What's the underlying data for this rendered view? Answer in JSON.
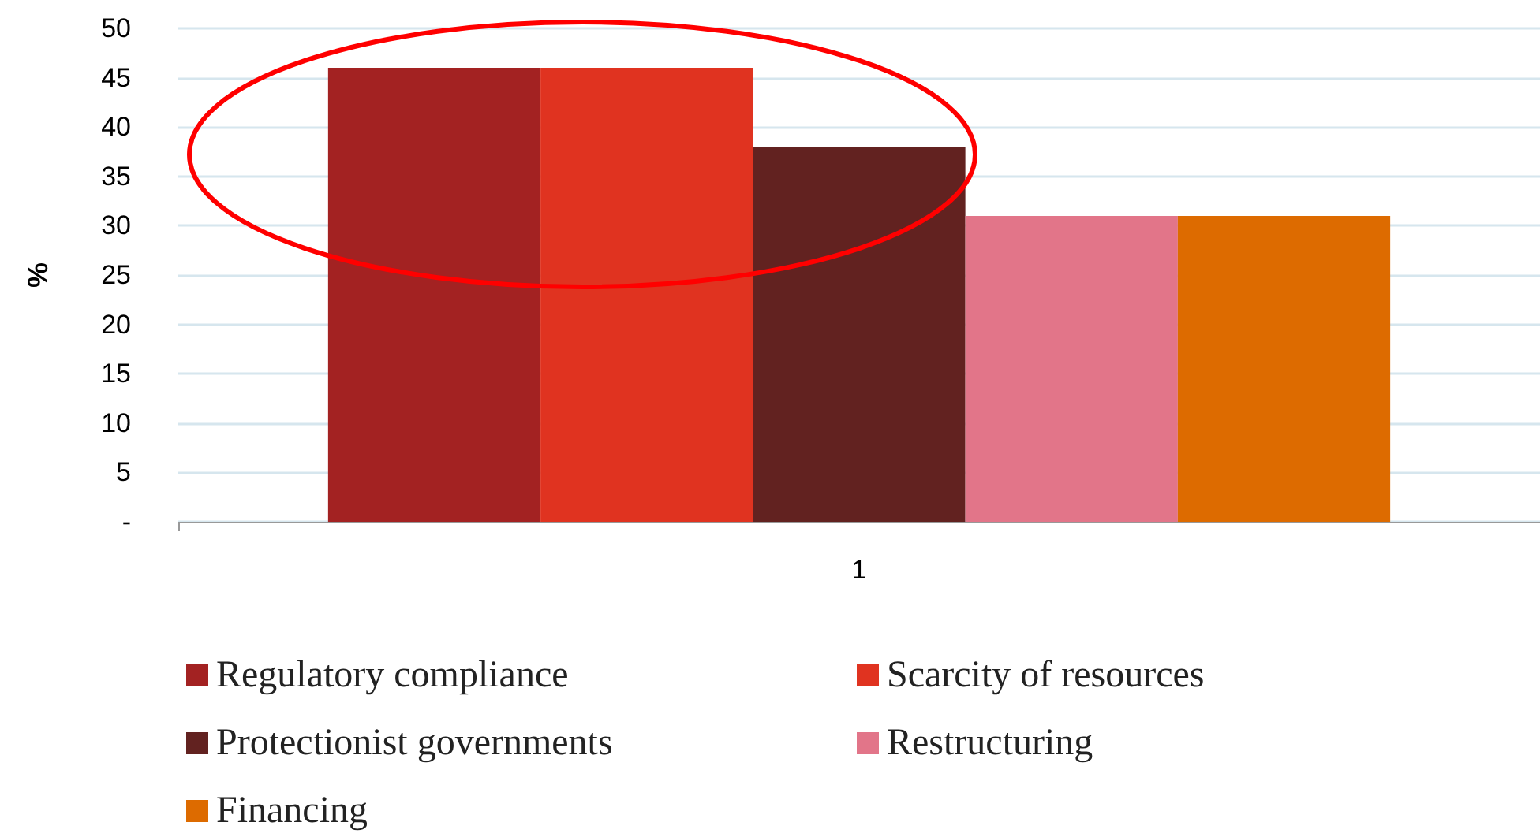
{
  "chart_data": {
    "type": "bar",
    "ylabel": "%",
    "categories": [
      "1"
    ],
    "series": [
      {
        "name": "Regulatory compliance",
        "color": "#a32222",
        "values": [
          46
        ]
      },
      {
        "name": "Scarcity of resources",
        "color": "#e03320",
        "values": [
          46
        ]
      },
      {
        "name": "Protectionist governments",
        "color": "#622220",
        "values": [
          38
        ]
      },
      {
        "name": "Restructuring",
        "color": "#e27589",
        "values": [
          31
        ]
      },
      {
        "name": "Financing",
        "color": "#dd6b00",
        "values": [
          31
        ]
      }
    ],
    "ylim": [
      0,
      50
    ],
    "yticks": [
      {
        "value": 0,
        "label": "-"
      },
      5,
      10,
      15,
      20,
      25,
      30,
      35,
      40,
      45,
      50
    ],
    "grid": "y",
    "legend": "bottom"
  }
}
